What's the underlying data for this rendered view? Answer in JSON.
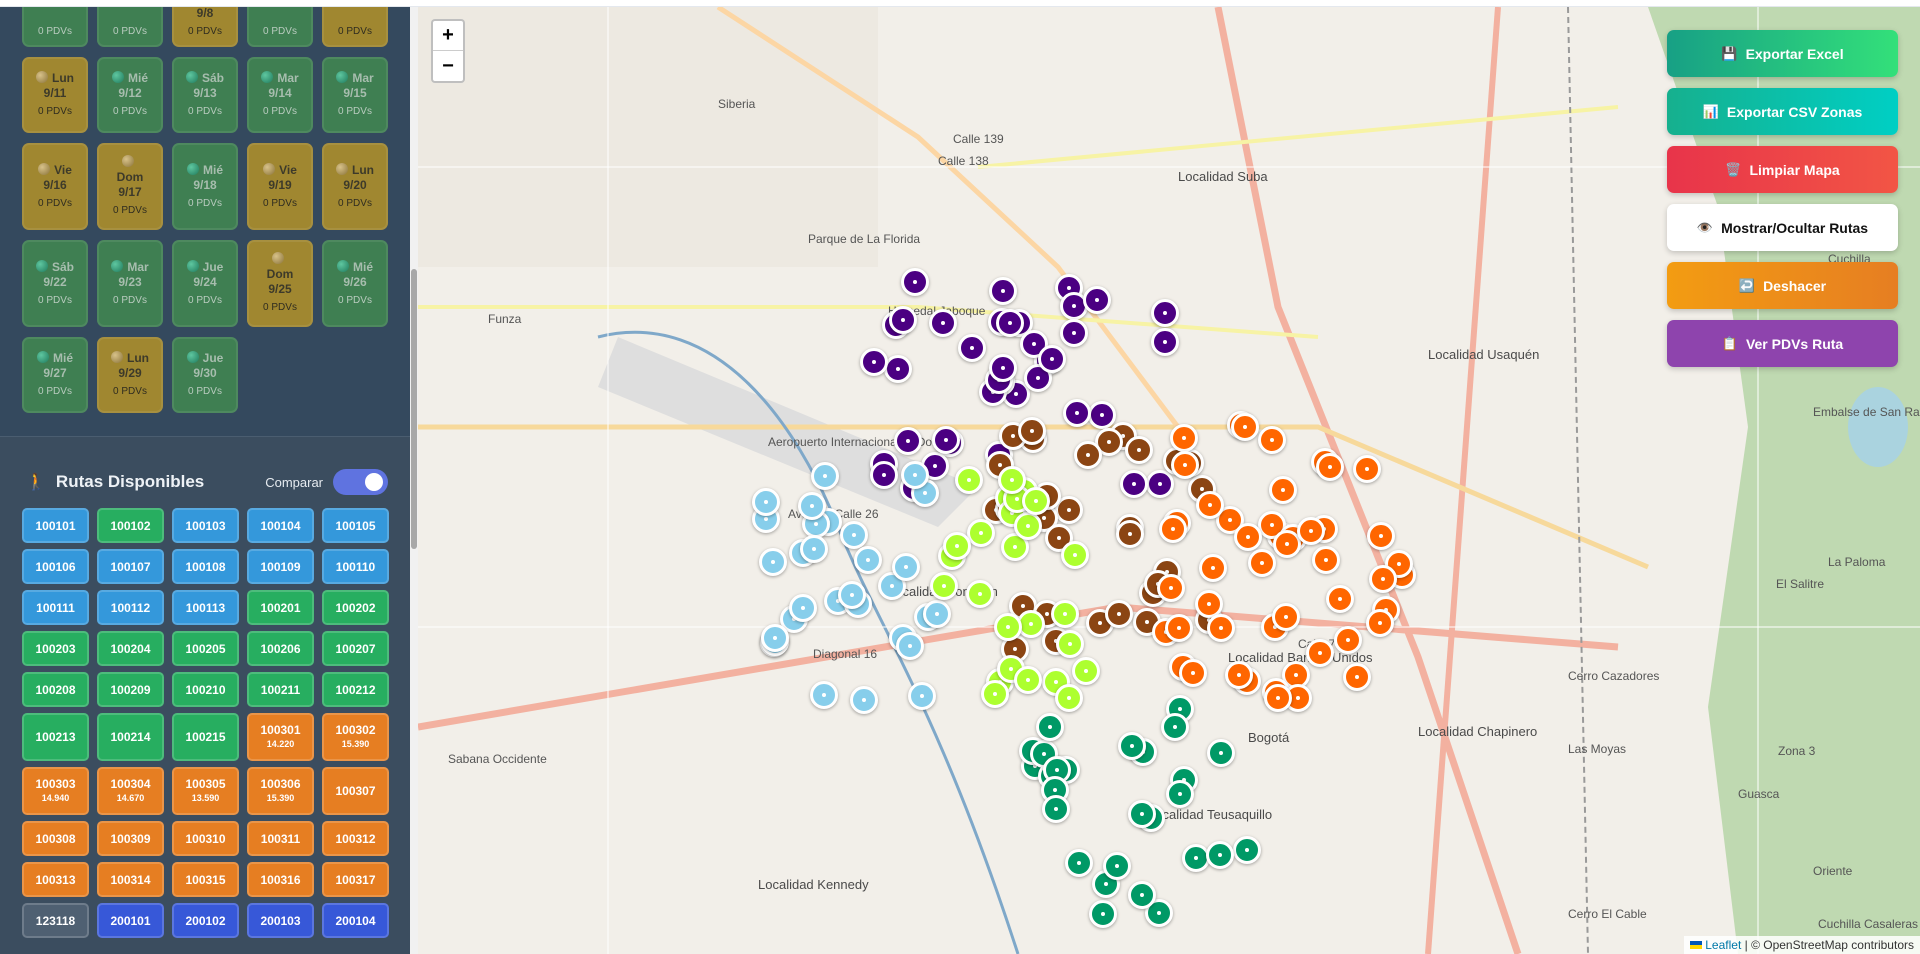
{
  "calendar": [
    {
      "day": "",
      "date": "",
      "pdvs": "0 PDVs",
      "status": "green"
    },
    {
      "day": "",
      "date": "",
      "pdvs": "0 PDVs",
      "status": "green"
    },
    {
      "day": "",
      "date": "9/8",
      "pdvs": "0 PDVs",
      "status": "gold"
    },
    {
      "day": "",
      "date": "",
      "pdvs": "0 PDVs",
      "status": "green"
    },
    {
      "day": "",
      "date": "",
      "pdvs": "0 PDVs",
      "status": "gold"
    },
    {
      "day": "Lun",
      "date": "9/11",
      "pdvs": "0 PDVs",
      "status": "gold"
    },
    {
      "day": "Mié",
      "date": "9/12",
      "pdvs": "0 PDVs",
      "status": "green"
    },
    {
      "day": "Sáb",
      "date": "9/13",
      "pdvs": "0 PDVs",
      "status": "green"
    },
    {
      "day": "Mar",
      "date": "9/14",
      "pdvs": "0 PDVs",
      "status": "green"
    },
    {
      "day": "Mar",
      "date": "9/15",
      "pdvs": "0 PDVs",
      "status": "green"
    },
    {
      "day": "Vie",
      "date": "9/16",
      "pdvs": "0 PDVs",
      "status": "gold"
    },
    {
      "day": "Dom",
      "date": "9/17",
      "pdvs": "0 PDVs",
      "status": "gold"
    },
    {
      "day": "Mié",
      "date": "9/18",
      "pdvs": "0 PDVs",
      "status": "green"
    },
    {
      "day": "Vie",
      "date": "9/19",
      "pdvs": "0 PDVs",
      "status": "gold"
    },
    {
      "day": "Lun",
      "date": "9/20",
      "pdvs": "0 PDVs",
      "status": "gold"
    },
    {
      "day": "Sáb",
      "date": "9/22",
      "pdvs": "0 PDVs",
      "status": "green"
    },
    {
      "day": "Mar",
      "date": "9/23",
      "pdvs": "0 PDVs",
      "status": "green"
    },
    {
      "day": "Jue",
      "date": "9/24",
      "pdvs": "0 PDVs",
      "status": "green"
    },
    {
      "day": "Dom",
      "date": "9/25",
      "pdvs": "0 PDVs",
      "status": "gold"
    },
    {
      "day": "Mié",
      "date": "9/26",
      "pdvs": "0 PDVs",
      "status": "green"
    },
    {
      "day": "Mié",
      "date": "9/27",
      "pdvs": "0 PDVs",
      "status": "green"
    },
    {
      "day": "Lun",
      "date": "9/29",
      "pdvs": "0 PDVs",
      "status": "gold"
    },
    {
      "day": "Jue",
      "date": "9/30",
      "pdvs": "0 PDVs",
      "status": "green"
    }
  ],
  "routes_panel": {
    "icon": "🚶",
    "title": "Rutas Disponibles",
    "compare_label": "Comparar",
    "compare_on": true,
    "routes": [
      {
        "id": "100101",
        "color": "blue"
      },
      {
        "id": "100102",
        "color": "green"
      },
      {
        "id": "100103",
        "color": "blue"
      },
      {
        "id": "100104",
        "color": "blue"
      },
      {
        "id": "100105",
        "color": "blue"
      },
      {
        "id": "100106",
        "color": "blue"
      },
      {
        "id": "100107",
        "color": "blue"
      },
      {
        "id": "100108",
        "color": "blue"
      },
      {
        "id": "100109",
        "color": "blue"
      },
      {
        "id": "100110",
        "color": "blue"
      },
      {
        "id": "100111",
        "color": "blue"
      },
      {
        "id": "100112",
        "color": "blue"
      },
      {
        "id": "100113",
        "color": "blue"
      },
      {
        "id": "100201",
        "color": "green"
      },
      {
        "id": "100202",
        "color": "green"
      },
      {
        "id": "100203",
        "color": "green"
      },
      {
        "id": "100204",
        "color": "green"
      },
      {
        "id": "100205",
        "color": "green"
      },
      {
        "id": "100206",
        "color": "green"
      },
      {
        "id": "100207",
        "color": "green"
      },
      {
        "id": "100208",
        "color": "green"
      },
      {
        "id": "100209",
        "color": "green"
      },
      {
        "id": "100210",
        "color": "green"
      },
      {
        "id": "100211",
        "color": "green"
      },
      {
        "id": "100212",
        "color": "green"
      },
      {
        "id": "100213",
        "color": "green",
        "tall": true
      },
      {
        "id": "100214",
        "color": "green",
        "tall": true
      },
      {
        "id": "100215",
        "color": "green",
        "tall": true
      },
      {
        "id": "100301",
        "color": "orange",
        "sub": "14.220"
      },
      {
        "id": "100302",
        "color": "orange",
        "sub": "15.390"
      },
      {
        "id": "100303",
        "color": "orange",
        "sub": "14.940"
      },
      {
        "id": "100304",
        "color": "orange",
        "sub": "14.670"
      },
      {
        "id": "100305",
        "color": "orange",
        "sub": "13.590"
      },
      {
        "id": "100306",
        "color": "orange",
        "sub": "15.390"
      },
      {
        "id": "100307",
        "color": "orange",
        "tall": true
      },
      {
        "id": "100308",
        "color": "orange"
      },
      {
        "id": "100309",
        "color": "orange"
      },
      {
        "id": "100310",
        "color": "orange"
      },
      {
        "id": "100311",
        "color": "orange"
      },
      {
        "id": "100312",
        "color": "orange"
      },
      {
        "id": "100313",
        "color": "orange"
      },
      {
        "id": "100314",
        "color": "orange"
      },
      {
        "id": "100315",
        "color": "orange"
      },
      {
        "id": "100316",
        "color": "orange"
      },
      {
        "id": "100317",
        "color": "orange"
      },
      {
        "id": "123118",
        "color": "gray"
      },
      {
        "id": "200101",
        "color": "indigo"
      },
      {
        "id": "200102",
        "color": "indigo"
      },
      {
        "id": "200103",
        "color": "indigo"
      },
      {
        "id": "200104",
        "color": "indigo"
      }
    ]
  },
  "map": {
    "zoom_in": "+",
    "zoom_out": "−",
    "labels": [
      "Siberia",
      "Funza",
      "Localidad Suba",
      "Localidad Usaquén",
      "Aeropuerto Internacional El Dorado",
      "Localidad Fontibón",
      "Localidad Barrios Unidos",
      "Localidad Chapinero",
      "Localidad Teusaquillo",
      "Localidad Kennedy",
      "Bogotá",
      "Zona 3",
      "El Salitre",
      "La Paloma",
      "Cerro Cazadores",
      "Embalse de San Rafael",
      "Cuchilla",
      "Cuchilla Casaleras",
      "Parque de La Florida",
      "Humedal Jaboque",
      "Calle 139",
      "Calle 138",
      "Calle 76",
      "Diagonal 16",
      "Avenida Calle 26",
      "Sabana Occidente",
      "Cerro El Cable",
      "Guasca",
      "Las Moyas",
      "Oriente"
    ],
    "attribution_link": "Leaflet",
    "attribution_text": " | © OpenStreetMap contributors",
    "marker_colors": [
      "#4b0082",
      "#8b4513",
      "#ff6600",
      "#87ceeb",
      "#adff2f",
      "#009966"
    ]
  },
  "actions": [
    {
      "icon": "💾",
      "label": "Exportar Excel",
      "bg": "linear-gradient(90deg,#17a085,#33e07a)",
      "fg": "#ffffff"
    },
    {
      "icon": "📊",
      "label": "Exportar CSV Zonas",
      "bg": "linear-gradient(90deg,#16b08e,#00cfc4)",
      "fg": "#ffffff"
    },
    {
      "icon": "🗑️",
      "label": "Limpiar Mapa",
      "bg": "linear-gradient(90deg,#e8344a,#f25545)",
      "fg": "#ffffff"
    },
    {
      "icon": "👁️",
      "label": "Mostrar/Ocultar Rutas",
      "bg": "#ffffff",
      "fg": "#111111"
    },
    {
      "icon": "↩️",
      "label": "Deshacer",
      "bg": "linear-gradient(90deg,#f39c12,#e67e22)",
      "fg": "#ffffff"
    },
    {
      "icon": "📋",
      "label": "Ver PDVs Ruta",
      "bg": "#8e44ad",
      "fg": "#ffffff"
    }
  ]
}
